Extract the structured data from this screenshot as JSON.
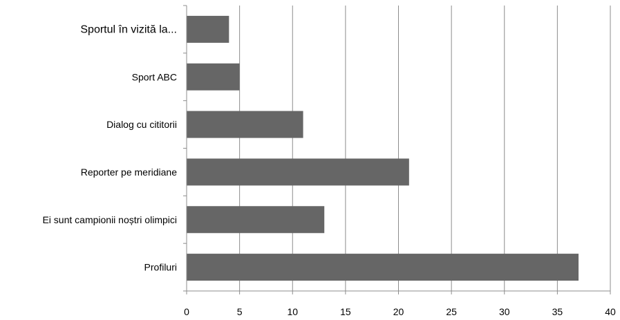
{
  "chart_data": {
    "type": "bar",
    "orientation": "horizontal",
    "categories": [
      "Sportul în vizită la...",
      "Sport ABC",
      "Dialog cu cititorii",
      "Reporter pe meridiane",
      "Ei sunt campionii noștri olimpici",
      "Profiluri"
    ],
    "values": [
      4,
      5,
      11,
      21,
      13,
      37
    ],
    "title": "",
    "xlabel": "",
    "ylabel": "",
    "xlim": [
      0,
      40
    ],
    "xticks": [
      "0",
      "5",
      "10",
      "15",
      "20",
      "25",
      "30",
      "35",
      "40"
    ],
    "grid": "vertical",
    "legend": "none",
    "colors": {
      "bar": "#666666",
      "grid": "#8c8c8c",
      "axis": "#8c8c8c"
    }
  }
}
